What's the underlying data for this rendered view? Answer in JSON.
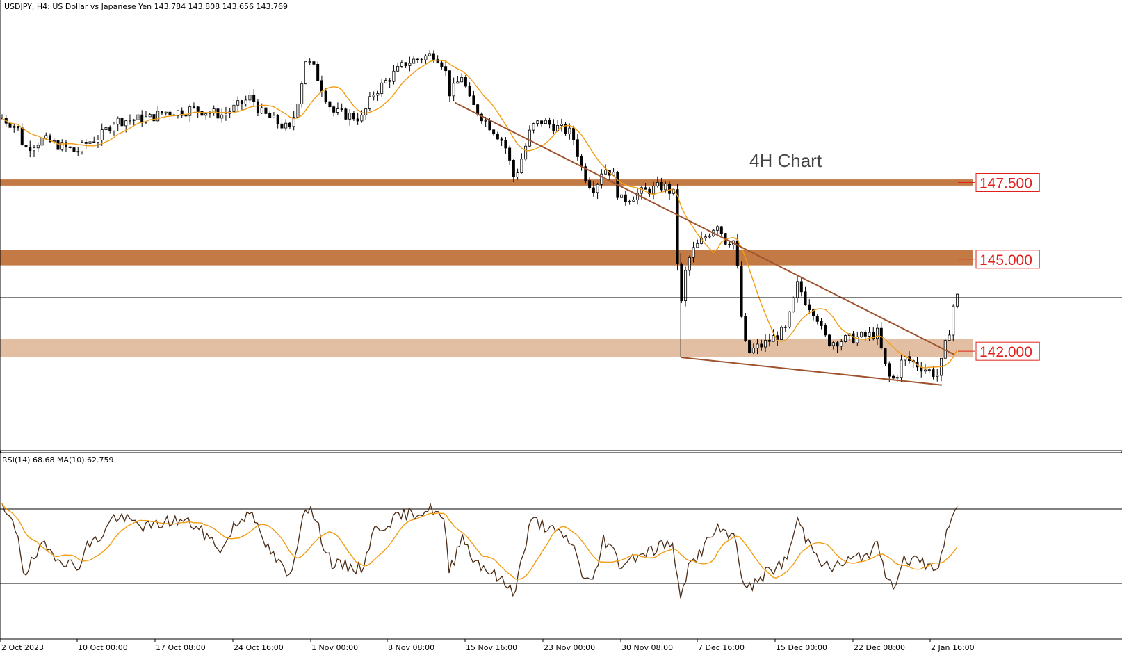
{
  "header": {
    "symbol": "USDJPY, H4:  US Dollar vs Japanese Yen  143.784 143.808 143.656 143.769"
  },
  "annotation": "4H Chart",
  "rsi_header": "RSI(14) 68.68 MA(10) 62.759",
  "colors": {
    "zone_dark": "#c47a45",
    "zone_light": "#e2bfa3",
    "trendline": "#a0522d",
    "ma": "#f39c12",
    "candle": "#000000",
    "label_red": "#e0201c",
    "rsi_line": "#4a2c17"
  },
  "chart_data": [
    {
      "type": "candlestick",
      "title": "USDJPY, H4",
      "ylim": [
        140.4,
        151.5
      ],
      "current_price": 143.769,
      "levels": [
        {
          "value": 147.5,
          "label": "147.500",
          "zone": [
            147.4,
            147.6
          ],
          "style": "dark"
        },
        {
          "value": 145.0,
          "label": "145.000",
          "zone": [
            144.8,
            145.3
          ],
          "style": "dark"
        },
        {
          "value": 142.0,
          "label": "142.000",
          "zone": [
            141.8,
            142.4
          ],
          "style": "light"
        }
      ],
      "trendlines": [
        {
          "from": [
            "15 Nov 12:00",
            150.1
          ],
          "to": [
            "3 Jan 12:00",
            141.9
          ]
        },
        {
          "from": [
            "7 Dec 16:00",
            141.8
          ],
          "to": [
            "2 Jan 08:00",
            140.9
          ]
        }
      ],
      "x_ticks": [
        "2 Oct 2023",
        "10 Oct 00:00",
        "17 Oct 08:00",
        "24 Oct 16:00",
        "1 Nov 00:00",
        "8 Nov 08:00",
        "15 Nov 16:00",
        "23 Nov 00:00",
        "30 Nov 08:00",
        "7 Dec 16:00",
        "15 Dec 00:00",
        "22 Dec 08:00",
        "2 Jan 16:00"
      ],
      "close_path": [
        {
          "t": "2 Oct 00:00",
          "v": 149.6
        },
        {
          "t": "3 Oct 12:00",
          "v": 149.3
        },
        {
          "t": "4 Oct 04:00",
          "v": 148.6
        },
        {
          "t": "6 Oct 00:00",
          "v": 148.9
        },
        {
          "t": "9 Oct 08:00",
          "v": 148.5
        },
        {
          "t": "10 Oct 08:00",
          "v": 148.8
        },
        {
          "t": "11 Oct 16:00",
          "v": 149.0
        },
        {
          "t": "13 Oct 00:00",
          "v": 149.5
        },
        {
          "t": "16 Oct 12:00",
          "v": 149.6
        },
        {
          "t": "18 Oct 00:00",
          "v": 149.8
        },
        {
          "t": "19 Oct 08:00",
          "v": 149.8
        },
        {
          "t": "20 Oct 16:00",
          "v": 149.9
        },
        {
          "t": "23 Oct 16:00",
          "v": 149.7
        },
        {
          "t": "24 Oct 16:00",
          "v": 149.9
        },
        {
          "t": "25 Oct 16:00",
          "v": 150.1
        },
        {
          "t": "26 Oct 12:00",
          "v": 150.3
        },
        {
          "t": "27 Oct 08:00",
          "v": 149.8
        },
        {
          "t": "30 Oct 08:00",
          "v": 149.2
        },
        {
          "t": "31 Oct 08:00",
          "v": 150.6
        },
        {
          "t": "31 Oct 20:00",
          "v": 151.5
        },
        {
          "t": "1 Nov 16:00",
          "v": 151.2
        },
        {
          "t": "2 Nov 16:00",
          "v": 150.4
        },
        {
          "t": "3 Nov 12:00",
          "v": 149.8
        },
        {
          "t": "6 Nov 08:00",
          "v": 149.6
        },
        {
          "t": "7 Nov 12:00",
          "v": 150.4
        },
        {
          "t": "9 Nov 08:00",
          "v": 151.0
        },
        {
          "t": "10 Nov 16:00",
          "v": 151.4
        },
        {
          "t": "13 Nov 12:00",
          "v": 151.7
        },
        {
          "t": "14 Nov 12:00",
          "v": 151.3
        },
        {
          "t": "14 Nov 20:00",
          "v": 150.4
        },
        {
          "t": "15 Nov 12:00",
          "v": 150.6
        },
        {
          "t": "16 Nov 04:00",
          "v": 151.0
        },
        {
          "t": "17 Nov 00:00",
          "v": 150.1
        },
        {
          "t": "20 Nov 08:00",
          "v": 148.8
        },
        {
          "t": "21 Nov 08:00",
          "v": 147.6
        },
        {
          "t": "22 Nov 04:00",
          "v": 148.4
        },
        {
          "t": "23 Nov 00:00",
          "v": 149.3
        },
        {
          "t": "24 Nov 00:00",
          "v": 149.5
        },
        {
          "t": "27 Nov 00:00",
          "v": 149.1
        },
        {
          "t": "28 Nov 00:00",
          "v": 147.9
        },
        {
          "t": "29 Nov 00:00",
          "v": 147.3
        },
        {
          "t": "29 Nov 16:00",
          "v": 147.6
        },
        {
          "t": "30 Nov 00:00",
          "v": 148.0
        },
        {
          "t": "1 Dec 00:00",
          "v": 147.8
        },
        {
          "t": "1 Dec 16:00",
          "v": 146.9
        },
        {
          "t": "4 Dec 00:00",
          "v": 147.2
        },
        {
          "t": "5 Dec 00:00",
          "v": 147.3
        },
        {
          "t": "6 Dec 00:00",
          "v": 147.4
        },
        {
          "t": "7 Dec 00:00",
          "v": 147.1
        },
        {
          "t": "7 Dec 08:00",
          "v": 145.0
        },
        {
          "t": "7 Dec 16:00",
          "v": 143.3
        },
        {
          "t": "8 Dec 00:00",
          "v": 144.4
        },
        {
          "t": "8 Dec 16:00",
          "v": 145.2
        },
        {
          "t": "11 Dec 08:00",
          "v": 146.2
        },
        {
          "t": "12 Dec 00:00",
          "v": 145.6
        },
        {
          "t": "13 Dec 00:00",
          "v": 145.6
        },
        {
          "t": "13 Dec 16:00",
          "v": 143.0
        },
        {
          "t": "14 Dec 04:00",
          "v": 141.9
        },
        {
          "t": "15 Dec 00:00",
          "v": 142.1
        },
        {
          "t": "15 Dec 16:00",
          "v": 142.2
        },
        {
          "t": "18 Dec 00:00",
          "v": 142.7
        },
        {
          "t": "19 Dec 04:00",
          "v": 144.2
        },
        {
          "t": "20 Dec 00:00",
          "v": 143.6
        },
        {
          "t": "21 Dec 00:00",
          "v": 143.2
        },
        {
          "t": "21 Dec 16:00",
          "v": 142.5
        },
        {
          "t": "22 Dec 08:00",
          "v": 142.3
        },
        {
          "t": "26 Dec 00:00",
          "v": 142.5
        },
        {
          "t": "27 Dec 00:00",
          "v": 142.6
        },
        {
          "t": "27 Dec 16:00",
          "v": 141.6
        },
        {
          "t": "28 Dec 08:00",
          "v": 141.0
        },
        {
          "t": "29 Dec 00:00",
          "v": 141.3
        },
        {
          "t": "29 Dec 12:00",
          "v": 141.8
        },
        {
          "t": "2 Jan 00:00",
          "v": 141.2
        },
        {
          "t": "2 Jan 12:00",
          "v": 142.0
        },
        {
          "t": "3 Jan 00:00",
          "v": 142.6
        },
        {
          "t": "3 Jan 12:00",
          "v": 143.6
        },
        {
          "t": "3 Jan 20:00",
          "v": 143.769
        }
      ]
    },
    {
      "type": "line",
      "title": "RSI(14) 68.68 MA(10) 62.759",
      "ylim": [
        20,
        100
      ],
      "levels": [
        70,
        30
      ],
      "series": [
        {
          "name": "RSI(14)",
          "last": 68.68
        },
        {
          "name": "MA(10)",
          "last": 62.759
        }
      ],
      "rsi_path": [
        {
          "t": "2 Oct 00:00",
          "v": 70
        },
        {
          "t": "3 Oct 12:00",
          "v": 58
        },
        {
          "t": "4 Oct 04:00",
          "v": 35
        },
        {
          "t": "6 Oct 00:00",
          "v": 50
        },
        {
          "t": "9 Oct 08:00",
          "v": 38
        },
        {
          "t": "10 Oct 08:00",
          "v": 50
        },
        {
          "t": "11 Oct 16:00",
          "v": 55
        },
        {
          "t": "13 Oct 00:00",
          "v": 66
        },
        {
          "t": "16 Oct 12:00",
          "v": 60
        },
        {
          "t": "18 Oct 00:00",
          "v": 63
        },
        {
          "t": "19 Oct 08:00",
          "v": 64
        },
        {
          "t": "20 Oct 16:00",
          "v": 62
        },
        {
          "t": "23 Oct 16:00",
          "v": 48
        },
        {
          "t": "24 Oct 16:00",
          "v": 60
        },
        {
          "t": "25 Oct 16:00",
          "v": 65
        },
        {
          "t": "26 Oct 12:00",
          "v": 72
        },
        {
          "t": "27 Oct 08:00",
          "v": 55
        },
        {
          "t": "30 Oct 08:00",
          "v": 32
        },
        {
          "t": "31 Oct 08:00",
          "v": 62
        },
        {
          "t": "31 Oct 20:00",
          "v": 73
        },
        {
          "t": "1 Nov 16:00",
          "v": 66
        },
        {
          "t": "2 Nov 16:00",
          "v": 50
        },
        {
          "t": "3 Nov 12:00",
          "v": 40
        },
        {
          "t": "6 Nov 08:00",
          "v": 38
        },
        {
          "t": "7 Nov 12:00",
          "v": 58
        },
        {
          "t": "9 Nov 08:00",
          "v": 64
        },
        {
          "t": "10 Nov 16:00",
          "v": 67
        },
        {
          "t": "13 Nov 12:00",
          "v": 70
        },
        {
          "t": "14 Nov 12:00",
          "v": 62
        },
        {
          "t": "14 Nov 20:00",
          "v": 36
        },
        {
          "t": "15 Nov 12:00",
          "v": 44
        },
        {
          "t": "16 Nov 04:00",
          "v": 58
        },
        {
          "t": "17 Nov 00:00",
          "v": 45
        },
        {
          "t": "20 Nov 08:00",
          "v": 30
        },
        {
          "t": "21 Nov 08:00",
          "v": 26
        },
        {
          "t": "22 Nov 04:00",
          "v": 45
        },
        {
          "t": "23 Nov 00:00",
          "v": 64
        },
        {
          "t": "24 Nov 00:00",
          "v": 62
        },
        {
          "t": "27 Nov 00:00",
          "v": 52
        },
        {
          "t": "28 Nov 00:00",
          "v": 35
        },
        {
          "t": "29 Nov 00:00",
          "v": 30
        },
        {
          "t": "29 Nov 16:00",
          "v": 42
        },
        {
          "t": "30 Nov 00:00",
          "v": 55
        },
        {
          "t": "1 Dec 00:00",
          "v": 48
        },
        {
          "t": "1 Dec 16:00",
          "v": 40
        },
        {
          "t": "4 Dec 00:00",
          "v": 47
        },
        {
          "t": "5 Dec 00:00",
          "v": 48
        },
        {
          "t": "6 Dec 00:00",
          "v": 52
        },
        {
          "t": "7 Dec 00:00",
          "v": 48
        },
        {
          "t": "7 Dec 08:00",
          "v": 32
        },
        {
          "t": "7 Dec 16:00",
          "v": 22
        },
        {
          "t": "8 Dec 00:00",
          "v": 32
        },
        {
          "t": "8 Dec 16:00",
          "v": 40
        },
        {
          "t": "11 Dec 08:00",
          "v": 60
        },
        {
          "t": "12 Dec 00:00",
          "v": 55
        },
        {
          "t": "13 Dec 00:00",
          "v": 56
        },
        {
          "t": "13 Dec 16:00",
          "v": 35
        },
        {
          "t": "14 Dec 04:00",
          "v": 26
        },
        {
          "t": "15 Dec 00:00",
          "v": 30
        },
        {
          "t": "15 Dec 16:00",
          "v": 34
        },
        {
          "t": "18 Dec 00:00",
          "v": 42
        },
        {
          "t": "19 Dec 04:00",
          "v": 64
        },
        {
          "t": "20 Dec 00:00",
          "v": 54
        },
        {
          "t": "21 Dec 00:00",
          "v": 48
        },
        {
          "t": "21 Dec 16:00",
          "v": 40
        },
        {
          "t": "22 Dec 08:00",
          "v": 38
        },
        {
          "t": "26 Dec 00:00",
          "v": 46
        },
        {
          "t": "27 Dec 00:00",
          "v": 50
        },
        {
          "t": "27 Dec 16:00",
          "v": 38
        },
        {
          "t": "28 Dec 08:00",
          "v": 28
        },
        {
          "t": "29 Dec 00:00",
          "v": 34
        },
        {
          "t": "29 Dec 12:00",
          "v": 44
        },
        {
          "t": "2 Jan 00:00",
          "v": 38
        },
        {
          "t": "2 Jan 12:00",
          "v": 52
        },
        {
          "t": "3 Jan 00:00",
          "v": 58
        },
        {
          "t": "3 Jan 12:00",
          "v": 70
        },
        {
          "t": "3 Jan 20:00",
          "v": 68.68
        }
      ]
    }
  ]
}
